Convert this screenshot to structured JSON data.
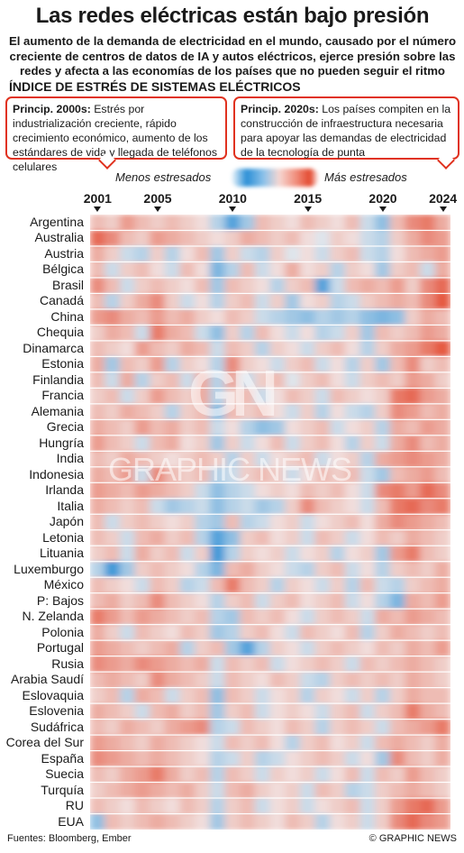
{
  "header": {
    "title": "Las redes eléctricas están bajo presión",
    "subtitle": "El aumento de la demanda de electricidad en el mundo, causado por el número creciente de centros de datos de IA y autos eléctricos, ejerce presión sobre las redes y afecta a las economías de los países que no pueden seguir el ritmo",
    "section": "ÍNDICE DE ESTRÉS DE SISTEMAS ELÉCTRICOS"
  },
  "callouts": [
    {
      "lead": "Princip. 2000s:",
      "text": " Estrés por industrialización creciente, rápido crecimiento económico, aumento de los estándares de vida y llegada de teléfonos celulares"
    },
    {
      "lead": "Princip. 2020s:",
      "text": " Los países compiten en la construcción de infraestructura necesaria para apoyar las demandas de electricidad de la tecnología de punta"
    }
  ],
  "legend": {
    "less": "Menos estresados",
    "more": "Más estresados"
  },
  "colors": {
    "low": "#2b8fd6",
    "mid": "#f2eeee",
    "high": "#e3482e",
    "callout_border": "#e0321f"
  },
  "footer": {
    "source": "Fuentes: Bloomberg, Ember",
    "credit": "© GRAPHIC NEWS"
  },
  "watermark": {
    "logo": "GN",
    "text": "GRAPHIC NEWS"
  },
  "chart_data": {
    "type": "heatmap",
    "title": "ÍNDICE DE ESTRÉS DE SISTEMAS ELÉCTRICOS",
    "x_ticks": [
      2001,
      2005,
      2010,
      2015,
      2020,
      2024
    ],
    "x": [
      2001,
      2002,
      2003,
      2004,
      2005,
      2006,
      2007,
      2008,
      2009,
      2010,
      2011,
      2012,
      2013,
      2014,
      2015,
      2016,
      2017,
      2018,
      2019,
      2020,
      2021,
      2022,
      2023,
      2024
    ],
    "value_scale": "estimated stress index, -1 = menos estresados, +1 = más estresados",
    "rows": [
      {
        "country": "Argentina",
        "values": [
          0.3,
          0.2,
          0.5,
          0.3,
          0.2,
          0.3,
          0.2,
          0.1,
          -0.3,
          -0.8,
          -0.4,
          0.3,
          0.2,
          0.1,
          0.3,
          0.2,
          0.1,
          0.3,
          -0.2,
          -0.5,
          0.3,
          0.6,
          0.7,
          0.4
        ]
      },
      {
        "country": "Australia",
        "values": [
          0.8,
          0.6,
          0.3,
          0.2,
          0.5,
          0.4,
          0.3,
          0.2,
          0.1,
          0.2,
          0.4,
          0.3,
          0.2,
          0.3,
          0.1,
          -0.1,
          0.2,
          0.1,
          -0.2,
          -0.3,
          0.2,
          0.4,
          0.6,
          0.5
        ]
      },
      {
        "country": "Austria",
        "values": [
          0.4,
          0.2,
          -0.2,
          -0.3,
          0.2,
          -0.3,
          0.1,
          0.3,
          -0.4,
          0.2,
          -0.2,
          -0.3,
          0.2,
          -0.1,
          0.1,
          -0.2,
          0.2,
          0.3,
          -0.2,
          -0.3,
          0.1,
          0.3,
          0.4,
          0.5
        ]
      },
      {
        "country": "Bélgica",
        "values": [
          0.3,
          -0.2,
          0.2,
          0.3,
          0.1,
          -0.2,
          0.3,
          0.1,
          -0.6,
          -0.3,
          0.3,
          -0.2,
          0.1,
          0.4,
          0.1,
          0.2,
          -0.3,
          0.2,
          0.1,
          -0.4,
          0.2,
          0.3,
          -0.2,
          0.4
        ]
      },
      {
        "country": "Brasil",
        "values": [
          0.6,
          0.3,
          -0.2,
          0.2,
          0.3,
          0.2,
          0.1,
          0.3,
          -0.4,
          0.3,
          0.2,
          0.1,
          -0.3,
          0.2,
          0.3,
          -0.8,
          -0.2,
          0.3,
          0.4,
          0.3,
          0.5,
          0.2,
          0.6,
          0.8
        ]
      },
      {
        "country": "Canadá",
        "values": [
          0.3,
          -0.3,
          0.2,
          0.4,
          0.6,
          0.2,
          -0.2,
          0.1,
          -0.3,
          0.2,
          0.3,
          -0.2,
          0.2,
          -0.4,
          0.1,
          0.2,
          -0.3,
          -0.2,
          0.2,
          0.3,
          0.4,
          0.3,
          0.6,
          0.9
        ]
      },
      {
        "country": "China",
        "values": [
          0.5,
          0.6,
          0.4,
          0.3,
          0.5,
          0.3,
          0.4,
          0.2,
          0.1,
          0.3,
          0.2,
          -0.2,
          -0.3,
          -0.4,
          -0.5,
          -0.3,
          -0.4,
          -0.3,
          -0.5,
          -0.6,
          -0.5,
          0.2,
          0.4,
          0.3
        ]
      },
      {
        "country": "Chequia",
        "values": [
          0.2,
          0.4,
          0.3,
          -0.2,
          0.7,
          0.4,
          0.3,
          -0.2,
          -0.5,
          0.2,
          -0.3,
          0.3,
          0.1,
          -0.2,
          0.1,
          -0.3,
          -0.2,
          0.2,
          -0.4,
          0.3,
          0.2,
          0.3,
          0.5,
          0.4
        ]
      },
      {
        "country": "Dinamarca",
        "values": [
          0.3,
          0.2,
          0.1,
          0.5,
          0.3,
          0.2,
          0.4,
          0.3,
          -0.2,
          0.3,
          0.2,
          -0.3,
          0.2,
          0.1,
          -0.2,
          0.2,
          0.3,
          0.1,
          -0.3,
          0.2,
          0.4,
          0.5,
          0.7,
          0.9
        ]
      },
      {
        "country": "Estonia",
        "values": [
          0.4,
          -0.4,
          0.3,
          0.2,
          0.5,
          -0.3,
          0.2,
          0.1,
          -0.3,
          0.6,
          0.2,
          0.1,
          -0.2,
          0.2,
          0.3,
          -0.2,
          0.1,
          -0.3,
          0.2,
          -0.4,
          0.3,
          0.6,
          0.2,
          0.3
        ]
      },
      {
        "country": "Finlandia",
        "values": [
          0.3,
          -0.2,
          0.4,
          -0.3,
          0.2,
          0.3,
          -0.2,
          0.4,
          -0.3,
          0.4,
          -0.2,
          0.2,
          0.3,
          -0.1,
          0.2,
          0.3,
          0.1,
          -0.2,
          0.2,
          0.3,
          0.2,
          0.5,
          0.4,
          0.2
        ]
      },
      {
        "country": "Francia",
        "values": [
          0.2,
          0.3,
          -0.2,
          0.2,
          0.5,
          0.3,
          0.2,
          0.4,
          -0.3,
          0.2,
          0.3,
          -0.2,
          0.1,
          0.3,
          0.2,
          -0.2,
          0.3,
          0.2,
          0.1,
          0.2,
          0.7,
          0.8,
          0.5,
          0.4
        ]
      },
      {
        "country": "Alemania",
        "values": [
          0.3,
          0.2,
          0.4,
          0.3,
          0.2,
          -0.3,
          0.2,
          0.3,
          -0.5,
          0.3,
          0.2,
          0.3,
          0.1,
          -0.2,
          0.2,
          -0.3,
          0.1,
          -0.2,
          -0.3,
          0.2,
          0.6,
          0.5,
          0.3,
          0.4
        ]
      },
      {
        "country": "Grecia",
        "values": [
          0.4,
          0.3,
          0.2,
          0.5,
          0.3,
          0.4,
          0.2,
          0.3,
          -0.2,
          0.1,
          -0.3,
          -0.5,
          -0.4,
          0.1,
          0.2,
          0.3,
          -0.2,
          0.1,
          0.2,
          -0.3,
          0.4,
          0.3,
          0.5,
          0.4
        ]
      },
      {
        "country": "Hungría",
        "values": [
          0.5,
          0.3,
          0.2,
          -0.2,
          0.3,
          0.4,
          0.1,
          0.2,
          -0.4,
          0.2,
          -0.2,
          0.1,
          0.3,
          -0.2,
          0.2,
          0.3,
          0.1,
          -0.3,
          0.2,
          -0.2,
          0.4,
          0.6,
          0.3,
          0.4
        ]
      },
      {
        "country": "India",
        "values": [
          0.3,
          0.2,
          0.4,
          0.3,
          0.2,
          0.1,
          0.2,
          0.3,
          0.2,
          -0.3,
          0.2,
          -0.2,
          0.1,
          0.2,
          0.3,
          -0.2,
          0.1,
          0.2,
          -0.3,
          0.4,
          0.5,
          0.6,
          0.5,
          0.4
        ]
      },
      {
        "country": "Indonesia",
        "values": [
          0.4,
          0.3,
          0.5,
          -0.2,
          0.6,
          0.3,
          0.2,
          0.3,
          -0.3,
          -0.2,
          0.2,
          0.3,
          0.2,
          -0.2,
          0.1,
          0.3,
          0.2,
          0.3,
          -0.2,
          -0.4,
          0.3,
          0.4,
          0.5,
          0.3
        ]
      },
      {
        "country": "Irlanda",
        "values": [
          0.5,
          0.4,
          0.3,
          0.5,
          0.4,
          0.3,
          0.2,
          -0.2,
          -0.5,
          -0.3,
          -0.2,
          0.1,
          0.2,
          0.1,
          0.3,
          0.2,
          0.3,
          0.1,
          -0.2,
          0.6,
          0.7,
          0.5,
          0.8,
          0.6
        ]
      },
      {
        "country": "Italia",
        "values": [
          0.4,
          0.3,
          0.2,
          0.3,
          -0.2,
          -0.4,
          -0.3,
          -0.2,
          -0.5,
          -0.3,
          -0.2,
          -0.4,
          -0.3,
          0.2,
          0.6,
          0.3,
          0.2,
          0.1,
          -0.2,
          0.3,
          0.7,
          0.8,
          0.6,
          0.7
        ]
      },
      {
        "country": "Japón",
        "values": [
          0.3,
          -0.2,
          0.2,
          0.3,
          0.2,
          0.1,
          0.2,
          -0.3,
          -0.4,
          0.3,
          -0.3,
          -0.2,
          0.1,
          0.2,
          -0.2,
          0.1,
          0.2,
          0.3,
          0.1,
          0.4,
          0.6,
          0.5,
          0.4,
          0.3
        ]
      },
      {
        "country": "Letonia",
        "values": [
          0.3,
          0.2,
          -0.2,
          0.3,
          0.4,
          0.2,
          0.3,
          -0.3,
          -0.8,
          -0.5,
          0.2,
          0.3,
          0.1,
          0.2,
          -0.2,
          0.3,
          0.2,
          -0.2,
          0.1,
          0.3,
          0.2,
          0.4,
          0.3,
          0.2
        ]
      },
      {
        "country": "Lituania",
        "values": [
          0.2,
          0.3,
          -0.2,
          0.4,
          0.2,
          0.3,
          -0.2,
          0.2,
          -0.9,
          -0.3,
          0.2,
          0.1,
          0.2,
          -0.2,
          0.1,
          0.2,
          -0.3,
          0.1,
          0.2,
          -0.4,
          0.5,
          0.7,
          0.3,
          0.2
        ]
      },
      {
        "country": "Luxemburgo",
        "values": [
          -0.3,
          -0.9,
          -0.4,
          0.2,
          0.3,
          0.2,
          0.1,
          -0.3,
          -0.6,
          0.3,
          0.4,
          0.2,
          0.1,
          -0.2,
          -0.3,
          0.2,
          0.3,
          -0.2,
          0.1,
          -0.3,
          0.2,
          0.3,
          0.2,
          0.4
        ]
      },
      {
        "country": "México",
        "values": [
          0.3,
          0.2,
          0.1,
          -0.2,
          0.3,
          0.2,
          -0.3,
          -0.2,
          0.3,
          0.7,
          0.3,
          0.2,
          -0.3,
          0.2,
          0.1,
          -0.2,
          0.2,
          -0.3,
          0.3,
          -0.2,
          -0.3,
          0.2,
          0.3,
          0.4
        ]
      },
      {
        "country": "P: Bajos",
        "values": [
          0.3,
          0.4,
          0.2,
          0.3,
          0.6,
          0.3,
          0.2,
          0.1,
          -0.3,
          0.2,
          0.3,
          -0.2,
          0.2,
          0.3,
          0.1,
          0.2,
          0.3,
          -0.2,
          0.1,
          -0.3,
          -0.6,
          0.4,
          0.3,
          0.5
        ]
      },
      {
        "country": "N. Zelanda",
        "values": [
          0.7,
          0.5,
          0.3,
          0.5,
          0.4,
          0.3,
          0.2,
          0.3,
          -0.3,
          -0.4,
          0.3,
          0.2,
          0.3,
          0.1,
          -0.2,
          0.2,
          0.3,
          0.2,
          -0.2,
          0.4,
          0.3,
          0.5,
          0.4,
          0.3
        ]
      },
      {
        "country": "Polonia",
        "values": [
          0.4,
          0.2,
          -0.2,
          0.3,
          0.2,
          0.1,
          0.3,
          0.2,
          -0.4,
          -0.3,
          0.2,
          0.3,
          0.1,
          -0.2,
          0.3,
          0.2,
          0.1,
          0.3,
          -0.3,
          0.2,
          0.4,
          0.3,
          0.2,
          0.3
        ]
      },
      {
        "country": "Portugal",
        "values": [
          0.5,
          0.4,
          0.3,
          0.2,
          0.3,
          0.4,
          -0.3,
          0.2,
          0.3,
          -0.4,
          -0.8,
          -0.3,
          0.2,
          0.1,
          -0.2,
          0.2,
          0.3,
          0.2,
          0.1,
          0.3,
          0.2,
          0.4,
          0.3,
          0.5
        ]
      },
      {
        "country": "Rusia",
        "values": [
          0.6,
          0.5,
          0.4,
          0.6,
          0.5,
          0.4,
          0.3,
          0.4,
          -0.2,
          0.3,
          0.2,
          0.3,
          -0.2,
          0.1,
          0.2,
          0.3,
          0.2,
          -0.2,
          0.3,
          0.2,
          0.3,
          0.4,
          0.3,
          0.2
        ]
      },
      {
        "country": "Arabia Saudí",
        "values": [
          0.3,
          0.4,
          0.3,
          0.2,
          0.6,
          0.4,
          0.3,
          0.2,
          -0.2,
          0.3,
          0.2,
          0.1,
          0.3,
          0.2,
          -0.2,
          -0.3,
          0.2,
          0.3,
          0.2,
          0.3,
          0.2,
          0.4,
          0.3,
          0.2
        ]
      },
      {
        "country": "Eslovaquia",
        "values": [
          0.2,
          0.3,
          -0.3,
          0.4,
          0.3,
          -0.2,
          0.2,
          0.3,
          -0.5,
          0.3,
          0.2,
          -0.2,
          0.1,
          0.2,
          -0.3,
          0.2,
          0.1,
          -0.2,
          0.2,
          -0.3,
          0.2,
          0.4,
          0.3,
          0.3
        ]
      },
      {
        "country": "Eslovenia",
        "values": [
          0.4,
          0.3,
          0.2,
          -0.2,
          0.3,
          0.4,
          0.2,
          0.3,
          -0.4,
          0.2,
          0.3,
          -0.2,
          0.1,
          0.2,
          0.1,
          -0.2,
          0.2,
          0.3,
          -0.2,
          0.2,
          0.3,
          0.7,
          0.4,
          0.3
        ]
      },
      {
        "country": "Sudáfrica",
        "values": [
          0.3,
          0.2,
          0.4,
          0.3,
          0.2,
          0.4,
          0.5,
          0.6,
          -0.3,
          -0.2,
          0.3,
          0.2,
          0.1,
          0.3,
          0.2,
          -0.3,
          0.2,
          0.3,
          0.2,
          -0.2,
          0.3,
          0.4,
          0.5,
          0.7
        ]
      },
      {
        "country": "Corea del Sur",
        "values": [
          0.5,
          0.4,
          0.3,
          0.2,
          0.4,
          0.3,
          0.2,
          0.1,
          -0.2,
          0.3,
          0.2,
          0.3,
          0.1,
          -0.3,
          0.2,
          0.3,
          0.1,
          0.2,
          -0.2,
          0.3,
          0.4,
          0.3,
          0.2,
          0.4
        ]
      },
      {
        "country": "España",
        "values": [
          0.6,
          0.5,
          0.4,
          0.3,
          0.4,
          0.3,
          0.2,
          0.1,
          -0.3,
          -0.2,
          0.2,
          -0.3,
          -0.2,
          0.1,
          0.2,
          0.3,
          0.2,
          -0.2,
          0.1,
          -0.4,
          0.6,
          0.3,
          0.2,
          0.4
        ]
      },
      {
        "country": "Suecia",
        "values": [
          0.3,
          0.2,
          0.4,
          0.5,
          0.7,
          0.4,
          0.2,
          0.3,
          -0.3,
          0.3,
          0.2,
          -0.2,
          0.2,
          0.1,
          0.2,
          -0.2,
          0.1,
          0.3,
          -0.2,
          0.3,
          0.2,
          0.5,
          0.3,
          0.2
        ]
      },
      {
        "country": "Turquía",
        "values": [
          0.2,
          0.3,
          0.4,
          0.5,
          0.4,
          0.3,
          0.4,
          0.2,
          -0.2,
          0.3,
          0.4,
          0.2,
          0.1,
          0.2,
          -0.2,
          0.3,
          0.2,
          -0.3,
          -0.2,
          0.2,
          0.3,
          0.4,
          0.3,
          0.2
        ]
      },
      {
        "country": "RU",
        "values": [
          0.3,
          0.2,
          0.1,
          0.3,
          0.2,
          0.1,
          0.3,
          0.2,
          -0.3,
          0.2,
          0.3,
          -0.2,
          0.1,
          0.2,
          -0.2,
          0.1,
          0.2,
          0.3,
          -0.2,
          0.2,
          0.5,
          0.7,
          0.8,
          0.5
        ]
      },
      {
        "country": "EUA",
        "values": [
          -0.5,
          0.3,
          0.2,
          0.3,
          0.4,
          0.3,
          0.2,
          0.1,
          -0.4,
          0.2,
          0.3,
          0.2,
          0.1,
          0.3,
          0.2,
          -0.3,
          0.1,
          0.2,
          -0.2,
          0.2,
          0.6,
          0.8,
          0.6,
          0.5
        ]
      }
    ]
  }
}
